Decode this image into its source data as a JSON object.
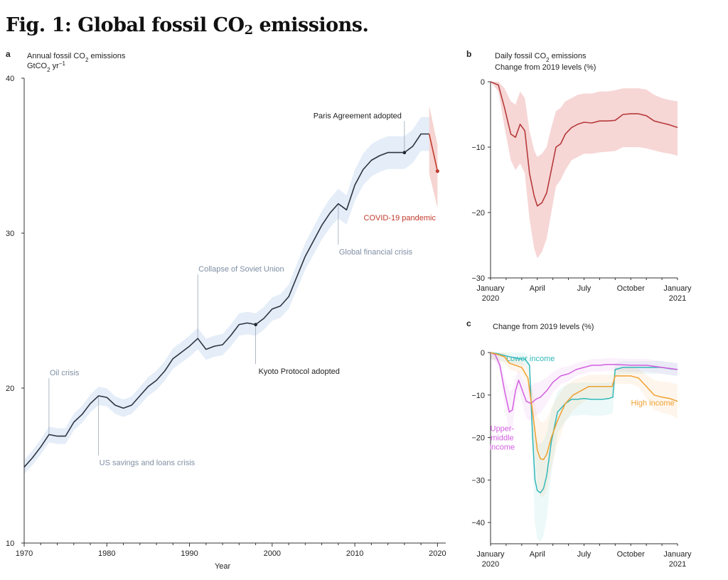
{
  "figure": {
    "title_prefix": "Fig. 1: Global fossil CO",
    "title_sub": "2",
    "title_suffix": " emissions."
  },
  "colors": {
    "panel_a_line": "#2b3440",
    "panel_a_band": "#e4edf8",
    "covid": "#c0392b",
    "covid_band": "#f3c9c6",
    "panel_b_line": "#b63b3b",
    "panel_b_band": "#f7d6d6",
    "lower_income": "#33b8b8",
    "upper_middle_income": "#d35fe0",
    "high_income": "#f0a030",
    "event_gray": "#7f8fa3",
    "event_black": "#222222"
  },
  "chart_data": [
    {
      "panel": "a",
      "type": "line",
      "title_line1_prefix": "Annual fossil CO",
      "title_line1_sub": "2",
      "title_line1_suffix": " emissions",
      "title_line2_prefix": "GtCO",
      "title_line2_sub": "2",
      "title_line2_suffix": " yr",
      "title_line2_sup": "−1",
      "xlabel": "Year",
      "xlim": [
        1970,
        2021
      ],
      "ylim": [
        10,
        40
      ],
      "xticks": [
        1970,
        1980,
        1990,
        2000,
        2010,
        2020
      ],
      "yticks": [
        10,
        20,
        30,
        40
      ],
      "x": [
        1970,
        1971,
        1972,
        1973,
        1974,
        1975,
        1976,
        1977,
        1978,
        1979,
        1980,
        1981,
        1982,
        1983,
        1984,
        1985,
        1986,
        1987,
        1988,
        1989,
        1990,
        1991,
        1992,
        1993,
        1994,
        1995,
        1996,
        1997,
        1998,
        1999,
        2000,
        2001,
        2002,
        2003,
        2004,
        2005,
        2006,
        2007,
        2008,
        2009,
        2010,
        2011,
        2012,
        2013,
        2014,
        2015,
        2016,
        2017,
        2018,
        2019
      ],
      "y": [
        14.9,
        15.5,
        16.2,
        17.0,
        16.9,
        16.9,
        17.8,
        18.3,
        19.0,
        19.5,
        19.4,
        18.9,
        18.7,
        18.9,
        19.5,
        20.1,
        20.5,
        21.1,
        21.9,
        22.3,
        22.7,
        23.2,
        22.5,
        22.7,
        22.8,
        23.4,
        24.1,
        24.2,
        24.1,
        24.5,
        25.1,
        25.3,
        25.9,
        27.2,
        28.5,
        29.5,
        30.5,
        31.3,
        31.9,
        31.5,
        33.1,
        34.1,
        34.7,
        35.0,
        35.2,
        35.2,
        35.2,
        35.6,
        36.4,
        36.4
      ],
      "covid_x": [
        2019,
        2020
      ],
      "covid_y": [
        36.4,
        34.0
      ],
      "covid_label": "COVID-19 pandemic",
      "events": [
        {
          "label": "Oil crisis",
          "year": 1973,
          "value": 17.0,
          "label_value": 21.0,
          "style": "gray"
        },
        {
          "label": "US savings and loans crisis",
          "year": 1979,
          "value": 19.5,
          "label_value": 15.2,
          "style": "gray"
        },
        {
          "label": "Collapse of Soviet Union",
          "year": 1991,
          "value": 23.2,
          "label_value": 27.7,
          "style": "gray"
        },
        {
          "label": "Kyoto Protocol adopted",
          "year": 1998,
          "value": 24.1,
          "label_value": 21.1,
          "style": "black"
        },
        {
          "label": "Global financial crisis",
          "year": 2008,
          "value": 31.9,
          "label_value": 28.8,
          "style": "gray"
        },
        {
          "label": "Paris Agreement adopted",
          "year": 2016,
          "value": 35.2,
          "label_value": 37.6,
          "style": "black"
        }
      ]
    },
    {
      "panel": "b",
      "type": "area",
      "title_line1_prefix": "Daily fossil CO",
      "title_line1_sub": "2",
      "title_line1_suffix": " emissions",
      "title_line2": "Change from 2019 levels (%)",
      "ylim": [
        -30,
        0
      ],
      "yticks": [
        0,
        -10,
        -20,
        -30
      ],
      "xlim": [
        0,
        12
      ],
      "xticks": [
        {
          "pos": 0,
          "line1": "January",
          "line2": "2020"
        },
        {
          "pos": 3,
          "line1": "April",
          "line2": ""
        },
        {
          "pos": 6,
          "line1": "July",
          "line2": ""
        },
        {
          "pos": 9,
          "line1": "October",
          "line2": ""
        },
        {
          "pos": 12,
          "line1": "January",
          "line2": "2021"
        }
      ],
      "x": [
        0,
        0.5,
        0.9,
        1.3,
        1.6,
        1.9,
        2.2,
        2.5,
        2.8,
        3.0,
        3.3,
        3.6,
        3.9,
        4.2,
        4.5,
        4.8,
        5.2,
        5.6,
        6.0,
        6.5,
        7.0,
        7.5,
        8.0,
        8.5,
        9.0,
        9.5,
        10.0,
        10.5,
        11.0,
        11.5,
        12.0
      ],
      "y": [
        0,
        -0.5,
        -4,
        -8,
        -8.5,
        -6.5,
        -7.5,
        -14,
        -17.5,
        -19,
        -18.5,
        -17,
        -13.5,
        -10,
        -9.5,
        -8,
        -7,
        -6.5,
        -6.2,
        -6.3,
        -6,
        -6,
        -5.9,
        -5,
        -4.9,
        -4.9,
        -5.2,
        -6,
        -6.3,
        -6.6,
        -7
      ],
      "band_lower": [
        0,
        -1.5,
        -7,
        -12,
        -13.5,
        -12.5,
        -14,
        -21,
        -25.5,
        -27,
        -26,
        -24,
        -20,
        -16,
        -15,
        -13.5,
        -12,
        -11.5,
        -11,
        -11,
        -10.8,
        -10.7,
        -10.6,
        -10,
        -10,
        -10,
        -10.2,
        -10.5,
        -10.8,
        -11,
        -11.3
      ],
      "band_upper": [
        0,
        0,
        -1,
        -3,
        -3.5,
        -1.5,
        -2.5,
        -7.5,
        -10.5,
        -11.5,
        -11,
        -10,
        -7,
        -4.5,
        -4,
        -3,
        -2.5,
        -2,
        -1.8,
        -1.8,
        -1.5,
        -1.5,
        -1.3,
        -1,
        -1,
        -1,
        -1.2,
        -2,
        -2.5,
        -2.8,
        -3
      ]
    },
    {
      "panel": "c",
      "type": "line",
      "title": "Change from 2019 levels (%)",
      "ylim": [
        -45,
        0
      ],
      "yticks": [
        0,
        -10,
        -20,
        -30,
        -40
      ],
      "xlim": [
        0,
        12
      ],
      "xticks": [
        {
          "pos": 0,
          "line1": "January",
          "line2": "2020"
        },
        {
          "pos": 3,
          "line1": "April",
          "line2": ""
        },
        {
          "pos": 6,
          "line1": "July",
          "line2": ""
        },
        {
          "pos": 9,
          "line1": "October",
          "line2": ""
        },
        {
          "pos": 12,
          "line1": "January",
          "line2": "2021"
        }
      ],
      "series": [
        {
          "name": "Lower income",
          "color_key": "lower_income",
          "label_x": 1.0,
          "label_y": -2.0,
          "label_anchor": "start",
          "x": [
            0,
            0.5,
            1.0,
            1.5,
            1.9,
            2.2,
            2.5,
            2.7,
            2.85,
            3.0,
            3.2,
            3.4,
            3.6,
            3.9,
            4.3,
            4.8,
            5.2,
            5.6,
            6.0,
            6.4,
            6.8,
            7.2,
            7.6,
            7.85,
            8.0,
            8.5,
            9.0,
            9.5,
            10.0,
            10.5,
            11.0,
            11.5,
            12.0
          ],
          "y": [
            0,
            -0.3,
            -0.8,
            -1.2,
            -1.5,
            -1.5,
            -3,
            -20,
            -30,
            -32.5,
            -33,
            -32,
            -29,
            -21,
            -14,
            -12,
            -11,
            -11,
            -10.8,
            -11,
            -11,
            -11,
            -10.8,
            -10.5,
            -4,
            -3.5,
            -3.5,
            -3.5,
            -3.5,
            -3.5,
            -3.5,
            -3.8,
            -4
          ]
        },
        {
          "name_lines": [
            "Upper-",
            "middle",
            "income"
          ],
          "color_key": "upper_middle_income",
          "label_x": 0.75,
          "label_y": -18.5,
          "label_anchor": "middle",
          "x": [
            0,
            0.3,
            0.6,
            0.9,
            1.2,
            1.4,
            1.6,
            1.8,
            2.0,
            2.3,
            2.6,
            2.9,
            3.2,
            3.6,
            4.0,
            4.5,
            5.0,
            5.5,
            6.0,
            6.5,
            7.0,
            7.5,
            8.0,
            9.0,
            10.0,
            11.0,
            12.0
          ],
          "y": [
            0,
            -0.5,
            -3,
            -9,
            -14,
            -13.5,
            -9,
            -6.5,
            -8.5,
            -11.5,
            -12,
            -11,
            -10.5,
            -9,
            -7,
            -5.5,
            -5,
            -4,
            -3.5,
            -3,
            -3,
            -2.8,
            -2.8,
            -3,
            -3,
            -3.5,
            -4
          ]
        },
        {
          "name": "High income",
          "color_key": "high_income",
          "label_x": 11.8,
          "label_y": -12.5,
          "label_anchor": "end",
          "x": [
            0,
            0.5,
            0.9,
            1.2,
            1.6,
            2.0,
            2.4,
            2.7,
            3.0,
            3.2,
            3.4,
            3.6,
            3.9,
            4.3,
            4.8,
            5.3,
            5.8,
            6.3,
            6.8,
            7.3,
            7.8,
            8.0,
            8.5,
            9.0,
            9.5,
            10.0,
            10.5,
            11.0,
            11.5,
            12.0
          ],
          "y": [
            0,
            -0.5,
            -1,
            -2.5,
            -3,
            -3.5,
            -6,
            -14,
            -23,
            -25,
            -25.2,
            -24,
            -20,
            -16,
            -12,
            -10,
            -9,
            -8,
            -8,
            -8,
            -8,
            -5.5,
            -5.5,
            -5.5,
            -6,
            -8,
            -10,
            -10.5,
            -10.8,
            -11.5
          ]
        }
      ]
    }
  ]
}
